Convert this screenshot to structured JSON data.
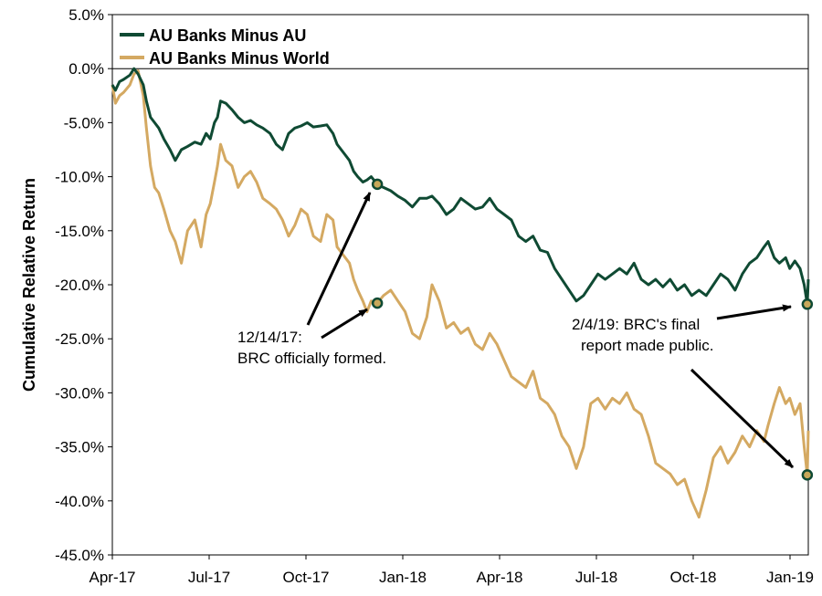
{
  "chart_data": {
    "type": "line",
    "title": "",
    "xlabel": "",
    "ylabel": "Cumulative Relative Return",
    "ylim": [
      -45,
      5
    ],
    "y_ticks": [
      "5.0%",
      "0.0%",
      "-5.0%",
      "-10.0%",
      "-15.0%",
      "-20.0%",
      "-25.0%",
      "-30.0%",
      "-35.0%",
      "-40.0%",
      "-45.0%"
    ],
    "x_ticks": [
      "Apr-17",
      "Jul-17",
      "Oct-17",
      "Jan-18",
      "Apr-18",
      "Jul-18",
      "Oct-18",
      "Jan-19"
    ],
    "x_range": [
      "2017-04-01",
      "2019-02-05"
    ],
    "legend_position": "top-left",
    "gridlines": false,
    "series": [
      {
        "name": "AU Banks Minus AU",
        "color": "#0f4a33",
        "points": [
          [
            "2017-04-01",
            -1.5
          ],
          [
            "2017-04-04",
            -2.0
          ],
          [
            "2017-04-08",
            -1.2
          ],
          [
            "2017-04-12",
            -1.0
          ],
          [
            "2017-04-18",
            -0.6
          ],
          [
            "2017-04-22",
            0.0
          ],
          [
            "2017-04-26",
            -0.5
          ],
          [
            "2017-05-01",
            -1.5
          ],
          [
            "2017-05-04",
            -3.0
          ],
          [
            "2017-05-08",
            -4.5
          ],
          [
            "2017-05-12",
            -5.0
          ],
          [
            "2017-05-16",
            -5.5
          ],
          [
            "2017-05-21",
            -6.5
          ],
          [
            "2017-05-27",
            -7.5
          ],
          [
            "2017-06-01",
            -8.5
          ],
          [
            "2017-06-07",
            -7.5
          ],
          [
            "2017-06-13",
            -7.2
          ],
          [
            "2017-06-20",
            -6.8
          ],
          [
            "2017-06-26",
            -7.0
          ],
          [
            "2017-07-01",
            -6.0
          ],
          [
            "2017-07-05",
            -6.5
          ],
          [
            "2017-07-09",
            -5.0
          ],
          [
            "2017-07-12",
            -4.5
          ],
          [
            "2017-07-15",
            -3.0
          ],
          [
            "2017-07-20",
            -3.2
          ],
          [
            "2017-07-26",
            -3.8
          ],
          [
            "2017-08-01",
            -4.5
          ],
          [
            "2017-08-07",
            -5.0
          ],
          [
            "2017-08-13",
            -4.8
          ],
          [
            "2017-08-19",
            -5.2
          ],
          [
            "2017-08-25",
            -5.5
          ],
          [
            "2017-09-01",
            -6.0
          ],
          [
            "2017-09-07",
            -7.0
          ],
          [
            "2017-09-13",
            -7.5
          ],
          [
            "2017-09-19",
            -6.0
          ],
          [
            "2017-09-25",
            -5.5
          ],
          [
            "2017-10-01",
            -5.3
          ],
          [
            "2017-10-07",
            -5.0
          ],
          [
            "2017-10-13",
            -5.4
          ],
          [
            "2017-10-20",
            -5.3
          ],
          [
            "2017-10-26",
            -5.2
          ],
          [
            "2017-11-01",
            -6.0
          ],
          [
            "2017-11-05",
            -7.0
          ],
          [
            "2017-11-09",
            -7.5
          ],
          [
            "2017-11-13",
            -8.0
          ],
          [
            "2017-11-17",
            -8.5
          ],
          [
            "2017-11-21",
            -9.5
          ],
          [
            "2017-11-25",
            -10.0
          ],
          [
            "2017-11-30",
            -10.5
          ],
          [
            "2017-12-04",
            -10.3
          ],
          [
            "2017-12-08",
            -10.0
          ],
          [
            "2017-12-14",
            -10.7
          ],
          [
            "2017-12-20",
            -11.0
          ],
          [
            "2017-12-27",
            -11.3
          ],
          [
            "2018-01-03",
            -11.8
          ],
          [
            "2018-01-10",
            -12.2
          ],
          [
            "2018-01-17",
            -12.8
          ],
          [
            "2018-01-24",
            -12.0
          ],
          [
            "2018-01-31",
            -12.0
          ],
          [
            "2018-02-05",
            -11.8
          ],
          [
            "2018-02-12",
            -12.5
          ],
          [
            "2018-02-19",
            -13.5
          ],
          [
            "2018-02-26",
            -13.0
          ],
          [
            "2018-03-05",
            -12.0
          ],
          [
            "2018-03-12",
            -12.5
          ],
          [
            "2018-03-19",
            -13.0
          ],
          [
            "2018-03-26",
            -12.8
          ],
          [
            "2018-04-02",
            -12.0
          ],
          [
            "2018-04-09",
            -13.0
          ],
          [
            "2018-04-16",
            -13.5
          ],
          [
            "2018-04-23",
            -14.0
          ],
          [
            "2018-04-30",
            -15.5
          ],
          [
            "2018-05-07",
            -16.0
          ],
          [
            "2018-05-14",
            -15.5
          ],
          [
            "2018-05-21",
            -16.8
          ],
          [
            "2018-05-28",
            -17.0
          ],
          [
            "2018-06-04",
            -18.5
          ],
          [
            "2018-06-11",
            -19.5
          ],
          [
            "2018-06-18",
            -20.5
          ],
          [
            "2018-06-25",
            -21.5
          ],
          [
            "2018-07-02",
            -21.0
          ],
          [
            "2018-07-09",
            -20.0
          ],
          [
            "2018-07-16",
            -19.0
          ],
          [
            "2018-07-23",
            -19.5
          ],
          [
            "2018-07-30",
            -19.0
          ],
          [
            "2018-08-06",
            -18.5
          ],
          [
            "2018-08-13",
            -19.0
          ],
          [
            "2018-08-20",
            -18.0
          ],
          [
            "2018-08-27",
            -19.5
          ],
          [
            "2018-09-03",
            -20.0
          ],
          [
            "2018-09-10",
            -19.5
          ],
          [
            "2018-09-17",
            -20.2
          ],
          [
            "2018-09-24",
            -19.5
          ],
          [
            "2018-10-01",
            -20.5
          ],
          [
            "2018-10-08",
            -20.0
          ],
          [
            "2018-10-15",
            -21.0
          ],
          [
            "2018-10-22",
            -20.5
          ],
          [
            "2018-10-29",
            -21.0
          ],
          [
            "2018-11-05",
            -20.0
          ],
          [
            "2018-11-12",
            -19.0
          ],
          [
            "2018-11-19",
            -19.5
          ],
          [
            "2018-11-26",
            -20.5
          ],
          [
            "2018-12-03",
            -19.0
          ],
          [
            "2018-12-10",
            -18.0
          ],
          [
            "2018-12-17",
            -17.5
          ],
          [
            "2018-12-24",
            -16.5
          ],
          [
            "2018-12-28",
            -16.0
          ],
          [
            "2019-01-03",
            -17.5
          ],
          [
            "2019-01-08",
            -18.0
          ],
          [
            "2019-01-14",
            -17.5
          ],
          [
            "2019-01-18",
            -18.5
          ],
          [
            "2019-01-23",
            -17.8
          ],
          [
            "2019-01-28",
            -18.5
          ],
          [
            "2019-02-01",
            -20.0
          ],
          [
            "2019-02-04",
            -21.8
          ],
          [
            "2019-02-05",
            -19.5
          ]
        ]
      },
      {
        "name": "AU Banks Minus World",
        "color": "#d4a962",
        "points": [
          [
            "2017-04-01",
            -1.5
          ],
          [
            "2017-04-04",
            -3.2
          ],
          [
            "2017-04-08",
            -2.5
          ],
          [
            "2017-04-12",
            -2.2
          ],
          [
            "2017-04-18",
            -1.5
          ],
          [
            "2017-04-22",
            -0.5
          ],
          [
            "2017-04-26",
            -0.2
          ],
          [
            "2017-05-01",
            -2.5
          ],
          [
            "2017-05-04",
            -5.5
          ],
          [
            "2017-05-08",
            -9.0
          ],
          [
            "2017-05-12",
            -11.0
          ],
          [
            "2017-05-16",
            -11.5
          ],
          [
            "2017-05-21",
            -13.0
          ],
          [
            "2017-05-27",
            -15.0
          ],
          [
            "2017-06-01",
            -16.0
          ],
          [
            "2017-06-07",
            -18.0
          ],
          [
            "2017-06-13",
            -15.0
          ],
          [
            "2017-06-20",
            -14.0
          ],
          [
            "2017-06-26",
            -16.5
          ],
          [
            "2017-07-01",
            -13.5
          ],
          [
            "2017-07-05",
            -12.5
          ],
          [
            "2017-07-09",
            -10.5
          ],
          [
            "2017-07-12",
            -9.0
          ],
          [
            "2017-07-15",
            -7.0
          ],
          [
            "2017-07-20",
            -8.5
          ],
          [
            "2017-07-26",
            -9.0
          ],
          [
            "2017-08-01",
            -11.0
          ],
          [
            "2017-08-07",
            -10.0
          ],
          [
            "2017-08-13",
            -9.5
          ],
          [
            "2017-08-19",
            -10.5
          ],
          [
            "2017-08-25",
            -12.0
          ],
          [
            "2017-09-01",
            -12.5
          ],
          [
            "2017-09-07",
            -13.0
          ],
          [
            "2017-09-13",
            -14.0
          ],
          [
            "2017-09-19",
            -15.5
          ],
          [
            "2017-09-25",
            -14.5
          ],
          [
            "2017-10-01",
            -13.0
          ],
          [
            "2017-10-07",
            -13.5
          ],
          [
            "2017-10-13",
            -15.5
          ],
          [
            "2017-10-20",
            -16.0
          ],
          [
            "2017-10-26",
            -13.5
          ],
          [
            "2017-11-01",
            -14.0
          ],
          [
            "2017-11-05",
            -16.5
          ],
          [
            "2017-11-09",
            -17.0
          ],
          [
            "2017-11-13",
            -17.5
          ],
          [
            "2017-11-17",
            -18.0
          ],
          [
            "2017-11-21",
            -19.5
          ],
          [
            "2017-11-25",
            -20.5
          ],
          [
            "2017-11-30",
            -21.5
          ],
          [
            "2017-12-04",
            -22.5
          ],
          [
            "2017-12-08",
            -21.5
          ],
          [
            "2017-12-14",
            -21.7
          ],
          [
            "2017-12-20",
            -21.0
          ],
          [
            "2017-12-27",
            -20.5
          ],
          [
            "2018-01-03",
            -21.5
          ],
          [
            "2018-01-10",
            -22.5
          ],
          [
            "2018-01-17",
            -24.5
          ],
          [
            "2018-01-24",
            -25.0
          ],
          [
            "2018-01-31",
            -23.0
          ],
          [
            "2018-02-05",
            -20.0
          ],
          [
            "2018-02-12",
            -21.5
          ],
          [
            "2018-02-19",
            -24.0
          ],
          [
            "2018-02-26",
            -23.5
          ],
          [
            "2018-03-05",
            -24.5
          ],
          [
            "2018-03-12",
            -24.0
          ],
          [
            "2018-03-19",
            -25.5
          ],
          [
            "2018-03-26",
            -26.0
          ],
          [
            "2018-04-02",
            -24.5
          ],
          [
            "2018-04-09",
            -25.5
          ],
          [
            "2018-04-16",
            -27.0
          ],
          [
            "2018-04-23",
            -28.5
          ],
          [
            "2018-04-30",
            -29.0
          ],
          [
            "2018-05-07",
            -29.5
          ],
          [
            "2018-05-14",
            -28.0
          ],
          [
            "2018-05-21",
            -30.5
          ],
          [
            "2018-05-28",
            -31.0
          ],
          [
            "2018-06-04",
            -32.0
          ],
          [
            "2018-06-11",
            -34.0
          ],
          [
            "2018-06-18",
            -35.0
          ],
          [
            "2018-06-25",
            -37.0
          ],
          [
            "2018-07-02",
            -35.0
          ],
          [
            "2018-07-09",
            -31.0
          ],
          [
            "2018-07-16",
            -30.5
          ],
          [
            "2018-07-23",
            -31.5
          ],
          [
            "2018-07-30",
            -30.5
          ],
          [
            "2018-08-06",
            -31.0
          ],
          [
            "2018-08-13",
            -30.0
          ],
          [
            "2018-08-20",
            -31.5
          ],
          [
            "2018-08-27",
            -32.0
          ],
          [
            "2018-09-03",
            -34.0
          ],
          [
            "2018-09-10",
            -36.5
          ],
          [
            "2018-09-17",
            -37.0
          ],
          [
            "2018-09-24",
            -37.5
          ],
          [
            "2018-10-01",
            -38.5
          ],
          [
            "2018-10-08",
            -38.0
          ],
          [
            "2018-10-15",
            -40.0
          ],
          [
            "2018-10-22",
            -41.5
          ],
          [
            "2018-10-29",
            -39.0
          ],
          [
            "2018-11-05",
            -36.0
          ],
          [
            "2018-11-12",
            -35.0
          ],
          [
            "2018-11-19",
            -36.5
          ],
          [
            "2018-11-26",
            -35.5
          ],
          [
            "2018-12-03",
            -34.0
          ],
          [
            "2018-12-10",
            -35.0
          ],
          [
            "2018-12-17",
            -33.5
          ],
          [
            "2018-12-24",
            -34.5
          ],
          [
            "2018-12-28",
            -33.0
          ],
          [
            "2019-01-03",
            -31.0
          ],
          [
            "2019-01-08",
            -29.5
          ],
          [
            "2019-01-14",
            -31.0
          ],
          [
            "2019-01-18",
            -30.5
          ],
          [
            "2019-01-23",
            -32.0
          ],
          [
            "2019-01-28",
            -31.0
          ],
          [
            "2019-02-01",
            -35.0
          ],
          [
            "2019-02-04",
            -37.6
          ],
          [
            "2019-02-05",
            -33.5
          ]
        ]
      }
    ],
    "markers": [
      {
        "series": "AU Banks Minus AU",
        "date": "2017-12-14",
        "y": -10.7
      },
      {
        "series": "AU Banks Minus World",
        "date": "2017-12-14",
        "y": -21.7
      },
      {
        "series": "AU Banks Minus AU",
        "date": "2019-02-04",
        "y": -21.8
      },
      {
        "series": "AU Banks Minus World",
        "date": "2019-02-04",
        "y": -37.6
      }
    ],
    "marker_style": {
      "fill": "#c8a85a",
      "stroke": "#0f4a33"
    },
    "annotations": [
      {
        "name": "brc-formed",
        "lines": [
          "12/14/17:",
          "BRC officially formed."
        ]
      },
      {
        "name": "brc-report",
        "lines": [
          "2/4/19: BRC's final",
          "report made public."
        ]
      }
    ]
  }
}
